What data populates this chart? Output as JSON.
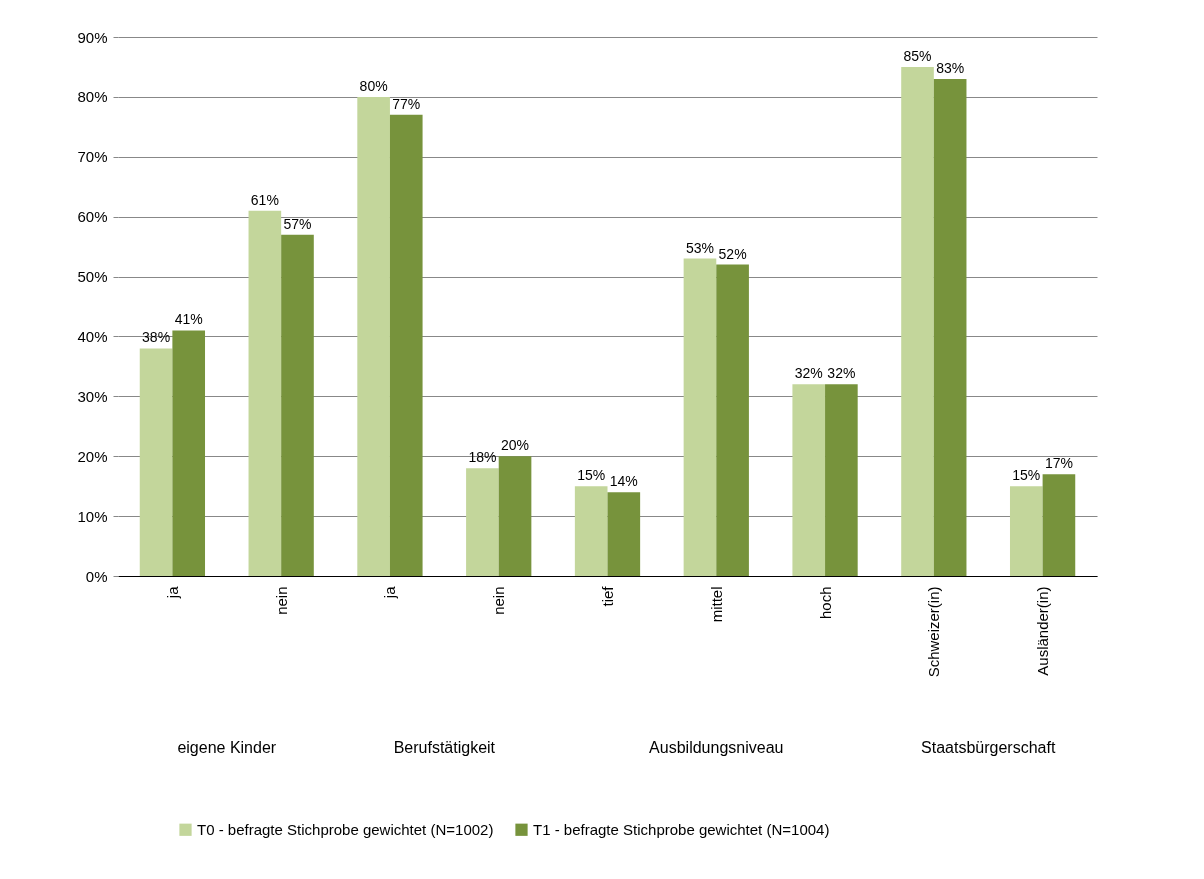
{
  "chart_data": {
    "type": "bar",
    "categories": [
      "ja",
      "nein",
      "ja",
      "nein",
      "tief",
      "mittel",
      "hoch",
      "Schweizer(in)",
      "Ausländer(in)"
    ],
    "series": [
      {
        "name": "T0 - befragte Stichprobe gewichtet (N=1002)",
        "color": "#c3d69b",
        "values": [
          38,
          61,
          80,
          18,
          15,
          53,
          32,
          85,
          15
        ],
        "value_labels": [
          "38%",
          "61%",
          "80%",
          "18%",
          "15%",
          "53%",
          "32%",
          "85%",
          "15%"
        ]
      },
      {
        "name": "T1 - befragte Stichprobe gewichtet (N=1004)",
        "color": "#77933c",
        "values": [
          41,
          57,
          77,
          20,
          14,
          52,
          32,
          83,
          17
        ],
        "value_labels": [
          "41%",
          "57%",
          "77%",
          "20%",
          "14%",
          "52%",
          "32%",
          "83%",
          "17%"
        ]
      }
    ],
    "ylim": [
      0,
      90
    ],
    "yticks": [
      {
        "value": 0,
        "label": "0%"
      },
      {
        "value": 10,
        "label": "10%"
      },
      {
        "value": 20,
        "label": "20%"
      },
      {
        "value": 30,
        "label": "30%"
      },
      {
        "value": 40,
        "label": "40%"
      },
      {
        "value": 50,
        "label": "50%"
      },
      {
        "value": 60,
        "label": "60%"
      },
      {
        "value": 70,
        "label": "70%"
      },
      {
        "value": 80,
        "label": "80%"
      },
      {
        "value": 90,
        "label": "90%"
      }
    ],
    "grid": "y",
    "legend": "bottom",
    "annotations": [
      "eigene Kinder",
      "Berufstätigkeit",
      "Ausbildungsniveau",
      "Staatsbürgerschaft"
    ]
  }
}
